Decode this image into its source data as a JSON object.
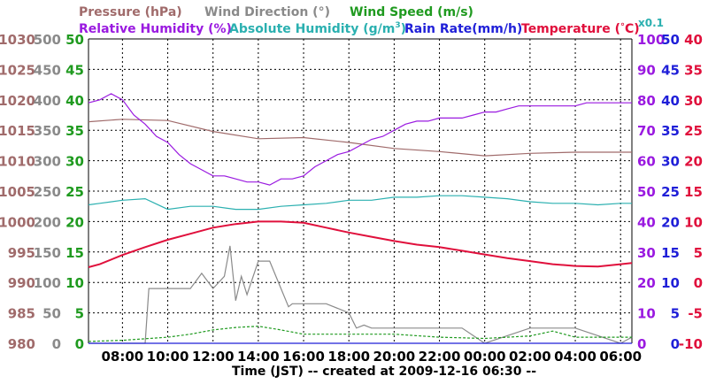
{
  "colors": {
    "pressure": "#a06b6b",
    "wind_direction": "#8a8a8a",
    "wind_speed": "#1f9a1f",
    "relative_humidity": "#9a1ae0",
    "absolute_humidity": "#2bb0b0",
    "rain_rate": "#1f1fd8",
    "temperature": "#e0103c",
    "grid": "#000000"
  },
  "legend": {
    "pressure": "Pressure (hPa)",
    "wind_direction": "Wind Direction (°)",
    "wind_speed": "Wind Speed (m/s)",
    "relative_humidity": "Relative Humidity (%)",
    "absolute_humidity_base": "Absolute Humidity (g/m",
    "absolute_humidity_sup": "3",
    "absolute_humidity_end": ")",
    "rain_rate": "Rain Rate(mm/h)",
    "temperature_base": "Temperature (",
    "temperature_deg": "°",
    "temperature_end": "C)",
    "absolute_humidity_scale": "x0.1"
  },
  "chart_data": {
    "type": "line",
    "xlabel": "Time (JST) -- created at 2009-12-16 06:30 --",
    "x_start": "2009-12-15 06:30",
    "x_end": "2009-12-16 06:30",
    "x_tick_labels": [
      "08:00",
      "10:00",
      "12:00",
      "14:00",
      "16:00",
      "18:00",
      "20:00",
      "22:00",
      "00:00",
      "02:00",
      "04:00",
      "06:00"
    ],
    "grid": true,
    "axes": {
      "pressure": {
        "side": "left",
        "range": [
          980,
          1030
        ],
        "ticks": [
          "980",
          "985",
          "990",
          "995",
          "1000",
          "1005",
          "1010",
          "1015",
          "1020",
          "1025",
          "1030"
        ]
      },
      "wind_direction": {
        "side": "left",
        "range": [
          0,
          500
        ],
        "ticks": [
          "0",
          "50",
          "100",
          "150",
          "200",
          "250",
          "300",
          "350",
          "400",
          "450",
          "500"
        ]
      },
      "wind_speed": {
        "side": "left",
        "range": [
          0,
          50
        ],
        "ticks": [
          "0",
          "5",
          "10",
          "15",
          "20",
          "25",
          "30",
          "35",
          "40",
          "45",
          "50"
        ]
      },
      "relative_humidity": {
        "side": "right",
        "range": [
          0,
          100
        ],
        "ticks": [
          "0",
          "10",
          "20",
          "30",
          "40",
          "50",
          "60",
          "70",
          "80",
          "90",
          "100"
        ]
      },
      "rain_rate": {
        "side": "right",
        "range": [
          0,
          50
        ],
        "ticks": [
          "0",
          "5",
          "10",
          "15",
          "20",
          "25",
          "30",
          "35",
          "40",
          "45",
          "50"
        ]
      },
      "temperature": {
        "side": "right",
        "range": [
          -10,
          40
        ],
        "ticks": [
          "-10",
          "-5",
          "0",
          "5",
          "10",
          "15",
          "20",
          "25",
          "30",
          "35",
          "40"
        ]
      }
    },
    "series": [
      {
        "name": "Pressure (hPa)",
        "axis": "pressure",
        "color": "#a06b6b",
        "x": [
          "2009-12-15 06:30",
          "2009-12-15 08:00",
          "2009-12-15 10:00",
          "2009-12-15 12:00",
          "2009-12-15 14:00",
          "2009-12-15 16:00",
          "2009-12-15 18:00",
          "2009-12-15 20:00",
          "2009-12-15 22:00",
          "2009-12-16 00:00",
          "2009-12-16 02:00",
          "2009-12-16 04:00",
          "2009-12-16 06:30"
        ],
        "y": [
          1016.4,
          1016.8,
          1016.6,
          1014.8,
          1013.6,
          1013.8,
          1013.0,
          1012.0,
          1011.5,
          1010.8,
          1011.2,
          1011.4,
          1011.4
        ]
      },
      {
        "name": "Wind Direction (°)",
        "axis": "wind_direction",
        "color": "#8a8a8a",
        "x": [
          "2009-12-15 06:30",
          "2009-12-15 09:00",
          "2009-12-15 09:10",
          "2009-12-15 11:00",
          "2009-12-15 11:30",
          "2009-12-15 12:00",
          "2009-12-15 12:30",
          "2009-12-15 12:45",
          "2009-12-15 13:00",
          "2009-12-15 13:15",
          "2009-12-15 13:30",
          "2009-12-15 14:00",
          "2009-12-15 14:30",
          "2009-12-15 15:00",
          "2009-12-15 15:20",
          "2009-12-15 15:30",
          "2009-12-15 17:00",
          "2009-12-15 18:00",
          "2009-12-15 18:20",
          "2009-12-15 18:40",
          "2009-12-15 19:00",
          "2009-12-15 21:00",
          "2009-12-15 23:00",
          "2009-12-16 00:00",
          "2009-12-16 02:00",
          "2009-12-16 04:00",
          "2009-12-16 06:00",
          "2009-12-16 06:30"
        ],
        "y": [
          0,
          0,
          90,
          90,
          115,
          90,
          110,
          160,
          70,
          110,
          80,
          135,
          135,
          90,
          60,
          65,
          65,
          50,
          25,
          30,
          25,
          25,
          25,
          0,
          25,
          25,
          0,
          10
        ]
      },
      {
        "name": "Wind Speed (m/s)",
        "axis": "wind_speed",
        "color": "#1f9a1f",
        "x": [
          "2009-12-15 06:30",
          "2009-12-15 08:00",
          "2009-12-15 10:00",
          "2009-12-15 11:00",
          "2009-12-15 12:00",
          "2009-12-15 13:00",
          "2009-12-15 14:00",
          "2009-12-15 15:00",
          "2009-12-15 16:00",
          "2009-12-15 18:00",
          "2009-12-15 20:00",
          "2009-12-15 22:00",
          "2009-12-16 00:00",
          "2009-12-16 02:00",
          "2009-12-16 03:00",
          "2009-12-16 04:00",
          "2009-12-16 06:30"
        ],
        "y": [
          0.3,
          0.5,
          1.0,
          1.5,
          2.2,
          2.6,
          2.8,
          2.2,
          1.5,
          1.5,
          1.5,
          1.0,
          0.8,
          1.2,
          2.0,
          1.0,
          1.0
        ]
      },
      {
        "name": "Relative Humidity (%)",
        "axis": "relative_humidity",
        "color": "#9a1ae0",
        "x": [
          "2009-12-15 06:30",
          "2009-12-15 07:00",
          "2009-12-15 07:30",
          "2009-12-15 08:00",
          "2009-12-15 08:30",
          "2009-12-15 09:00",
          "2009-12-15 09:30",
          "2009-12-15 10:00",
          "2009-12-15 10:30",
          "2009-12-15 11:00",
          "2009-12-15 11:30",
          "2009-12-15 12:00",
          "2009-12-15 12:30",
          "2009-12-15 13:00",
          "2009-12-15 13:30",
          "2009-12-15 14:00",
          "2009-12-15 14:30",
          "2009-12-15 15:00",
          "2009-12-15 15:30",
          "2009-12-15 16:00",
          "2009-12-15 16:30",
          "2009-12-15 17:00",
          "2009-12-15 17:30",
          "2009-12-15 18:00",
          "2009-12-15 18:30",
          "2009-12-15 19:00",
          "2009-12-15 19:30",
          "2009-12-15 20:00",
          "2009-12-15 20:30",
          "2009-12-15 21:00",
          "2009-12-15 21:30",
          "2009-12-15 22:00",
          "2009-12-15 22:30",
          "2009-12-15 23:00",
          "2009-12-15 23:30",
          "2009-12-16 00:00",
          "2009-12-16 00:30",
          "2009-12-16 01:00",
          "2009-12-16 01:30",
          "2009-12-16 02:00",
          "2009-12-16 02:30",
          "2009-12-16 03:00",
          "2009-12-16 03:30",
          "2009-12-16 04:00",
          "2009-12-16 04:30",
          "2009-12-16 05:00",
          "2009-12-16 05:30",
          "2009-12-16 06:00",
          "2009-12-16 06:30"
        ],
        "y": [
          79,
          80,
          82,
          80,
          75,
          72,
          68,
          66,
          62,
          59,
          57,
          55,
          55,
          54,
          53,
          53,
          52,
          54,
          54,
          55,
          58,
          60,
          62,
          63,
          65,
          67,
          68,
          70,
          72,
          73,
          73,
          74,
          74,
          74,
          75,
          76,
          76,
          77,
          78,
          78,
          78,
          78,
          78,
          78,
          79,
          79,
          79,
          79,
          79
        ]
      },
      {
        "name": "Absolute Humidity (g/m3)",
        "axis": "relative_humidity",
        "scale": "x0.1",
        "color": "#2bb0b0",
        "x": [
          "2009-12-15 06:30",
          "2009-12-15 07:00",
          "2009-12-15 08:00",
          "2009-12-15 09:00",
          "2009-12-15 10:00",
          "2009-12-15 11:00",
          "2009-12-15 12:00",
          "2009-12-15 13:00",
          "2009-12-15 14:00",
          "2009-12-15 15:00",
          "2009-12-15 16:00",
          "2009-12-15 17:00",
          "2009-12-15 18:00",
          "2009-12-15 19:00",
          "2009-12-15 20:00",
          "2009-12-15 21:00",
          "2009-12-15 22:00",
          "2009-12-15 23:00",
          "2009-12-16 00:00",
          "2009-12-16 01:00",
          "2009-12-16 02:00",
          "2009-12-16 03:00",
          "2009-12-16 04:00",
          "2009-12-16 05:00",
          "2009-12-16 06:00",
          "2009-12-16 06:30"
        ],
        "y": [
          45.5,
          46,
          47,
          47.5,
          44,
          45,
          45,
          44,
          44,
          45,
          45.5,
          46,
          47,
          47,
          48,
          48,
          48.5,
          48.5,
          48,
          47.5,
          46.5,
          46,
          46,
          45.5,
          46,
          46
        ]
      },
      {
        "name": "Rain Rate(mm/h)",
        "axis": "rain_rate",
        "color": "#1f1fd8",
        "x": [
          "2009-12-15 06:30",
          "2009-12-16 06:30"
        ],
        "y": [
          0,
          0
        ]
      },
      {
        "name": "Temperature (°C)",
        "axis": "temperature",
        "color": "#e0103c",
        "x": [
          "2009-12-15 06:30",
          "2009-12-15 07:00",
          "2009-12-15 08:00",
          "2009-12-15 09:00",
          "2009-12-15 10:00",
          "2009-12-15 11:00",
          "2009-12-15 12:00",
          "2009-12-15 13:00",
          "2009-12-15 14:00",
          "2009-12-15 15:00",
          "2009-12-15 16:00",
          "2009-12-15 17:00",
          "2009-12-15 18:00",
          "2009-12-15 19:00",
          "2009-12-15 20:00",
          "2009-12-15 21:00",
          "2009-12-15 22:00",
          "2009-12-15 23:00",
          "2009-12-16 00:00",
          "2009-12-16 01:00",
          "2009-12-16 02:00",
          "2009-12-16 03:00",
          "2009-12-16 04:00",
          "2009-12-16 05:00",
          "2009-12-16 06:00",
          "2009-12-16 06:30"
        ],
        "y": [
          2.5,
          3.0,
          4.5,
          5.8,
          7.0,
          8.0,
          9.0,
          9.6,
          10.0,
          10.0,
          9.8,
          9.0,
          8.2,
          7.5,
          6.8,
          6.2,
          5.8,
          5.2,
          4.6,
          4.0,
          3.5,
          3.0,
          2.7,
          2.6,
          3.0,
          3.2
        ]
      }
    ]
  }
}
